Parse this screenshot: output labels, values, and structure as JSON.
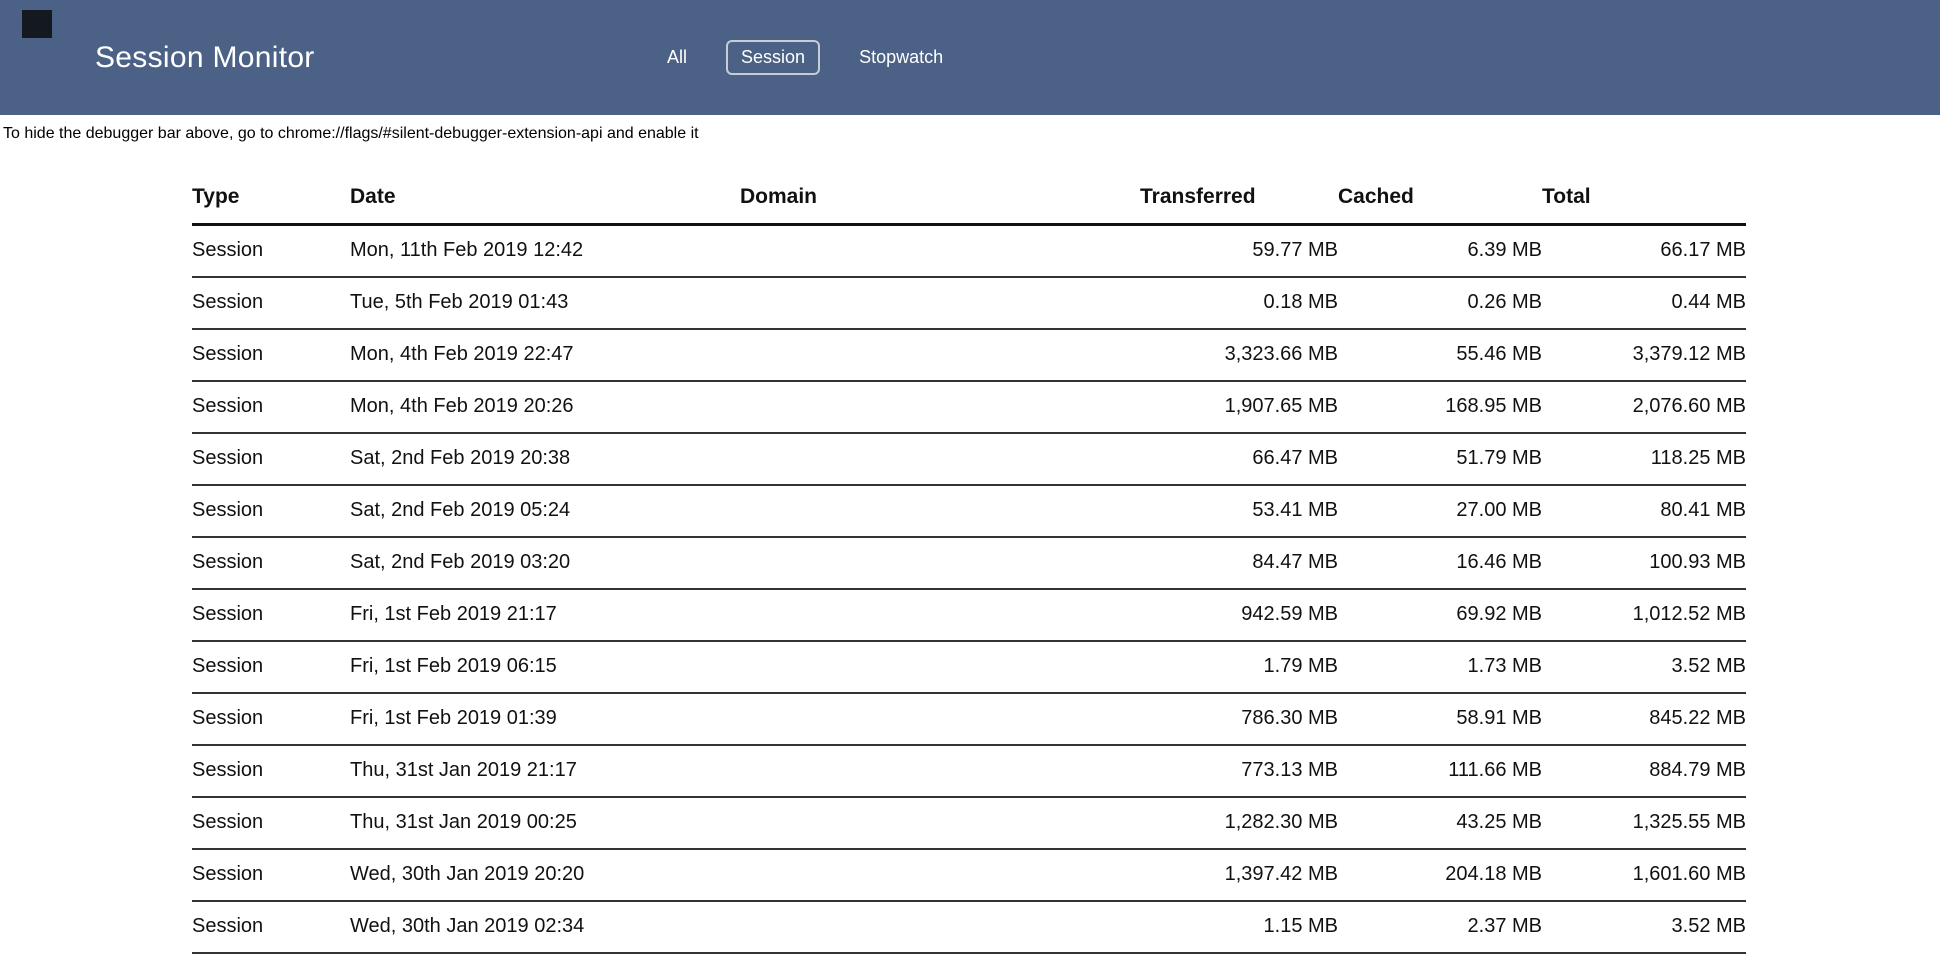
{
  "colors": {
    "header_bg": "#4b6186",
    "header_text": "#ffffff",
    "page_bg": "#ffffff",
    "active_tab_border": "#c7cdd8",
    "table_rule": "#333333"
  },
  "header": {
    "title": "Session Monitor",
    "tabs": [
      {
        "label": "All",
        "active": false
      },
      {
        "label": "Session",
        "active": true
      },
      {
        "label": "Stopwatch",
        "active": false
      }
    ]
  },
  "notice": "To hide the debugger bar above, go to chrome://flags/#silent-debugger-extension-api and enable it",
  "table": {
    "columns": [
      "Type",
      "Date",
      "Domain",
      "Transferred",
      "Cached",
      "Total"
    ],
    "rows": [
      {
        "type": "Session",
        "date": "Mon, 11th Feb 2019 12:42",
        "domain": "",
        "transferred": "59.77 MB",
        "cached": "6.39 MB",
        "total": "66.17 MB"
      },
      {
        "type": "Session",
        "date": "Tue, 5th Feb 2019 01:43",
        "domain": "",
        "transferred": "0.18 MB",
        "cached": "0.26 MB",
        "total": "0.44 MB"
      },
      {
        "type": "Session",
        "date": "Mon, 4th Feb 2019 22:47",
        "domain": "",
        "transferred": "3,323.66 MB",
        "cached": "55.46 MB",
        "total": "3,379.12 MB"
      },
      {
        "type": "Session",
        "date": "Mon, 4th Feb 2019 20:26",
        "domain": "",
        "transferred": "1,907.65 MB",
        "cached": "168.95 MB",
        "total": "2,076.60 MB"
      },
      {
        "type": "Session",
        "date": "Sat, 2nd Feb 2019 20:38",
        "domain": "",
        "transferred": "66.47 MB",
        "cached": "51.79 MB",
        "total": "118.25 MB"
      },
      {
        "type": "Session",
        "date": "Sat, 2nd Feb 2019 05:24",
        "domain": "",
        "transferred": "53.41 MB",
        "cached": "27.00 MB",
        "total": "80.41 MB"
      },
      {
        "type": "Session",
        "date": "Sat, 2nd Feb 2019 03:20",
        "domain": "",
        "transferred": "84.47 MB",
        "cached": "16.46 MB",
        "total": "100.93 MB"
      },
      {
        "type": "Session",
        "date": "Fri, 1st Feb 2019 21:17",
        "domain": "",
        "transferred": "942.59 MB",
        "cached": "69.92 MB",
        "total": "1,012.52 MB"
      },
      {
        "type": "Session",
        "date": "Fri, 1st Feb 2019 06:15",
        "domain": "",
        "transferred": "1.79 MB",
        "cached": "1.73 MB",
        "total": "3.52 MB"
      },
      {
        "type": "Session",
        "date": "Fri, 1st Feb 2019 01:39",
        "domain": "",
        "transferred": "786.30 MB",
        "cached": "58.91 MB",
        "total": "845.22 MB"
      },
      {
        "type": "Session",
        "date": "Thu, 31st Jan 2019 21:17",
        "domain": "",
        "transferred": "773.13 MB",
        "cached": "111.66 MB",
        "total": "884.79 MB"
      },
      {
        "type": "Session",
        "date": "Thu, 31st Jan 2019 00:25",
        "domain": "",
        "transferred": "1,282.30 MB",
        "cached": "43.25 MB",
        "total": "1,325.55 MB"
      },
      {
        "type": "Session",
        "date": "Wed, 30th Jan 2019 20:20",
        "domain": "",
        "transferred": "1,397.42 MB",
        "cached": "204.18 MB",
        "total": "1,601.60 MB"
      },
      {
        "type": "Session",
        "date": "Wed, 30th Jan 2019 02:34",
        "domain": "",
        "transferred": "1.15 MB",
        "cached": "2.37 MB",
        "total": "3.52 MB"
      }
    ]
  }
}
